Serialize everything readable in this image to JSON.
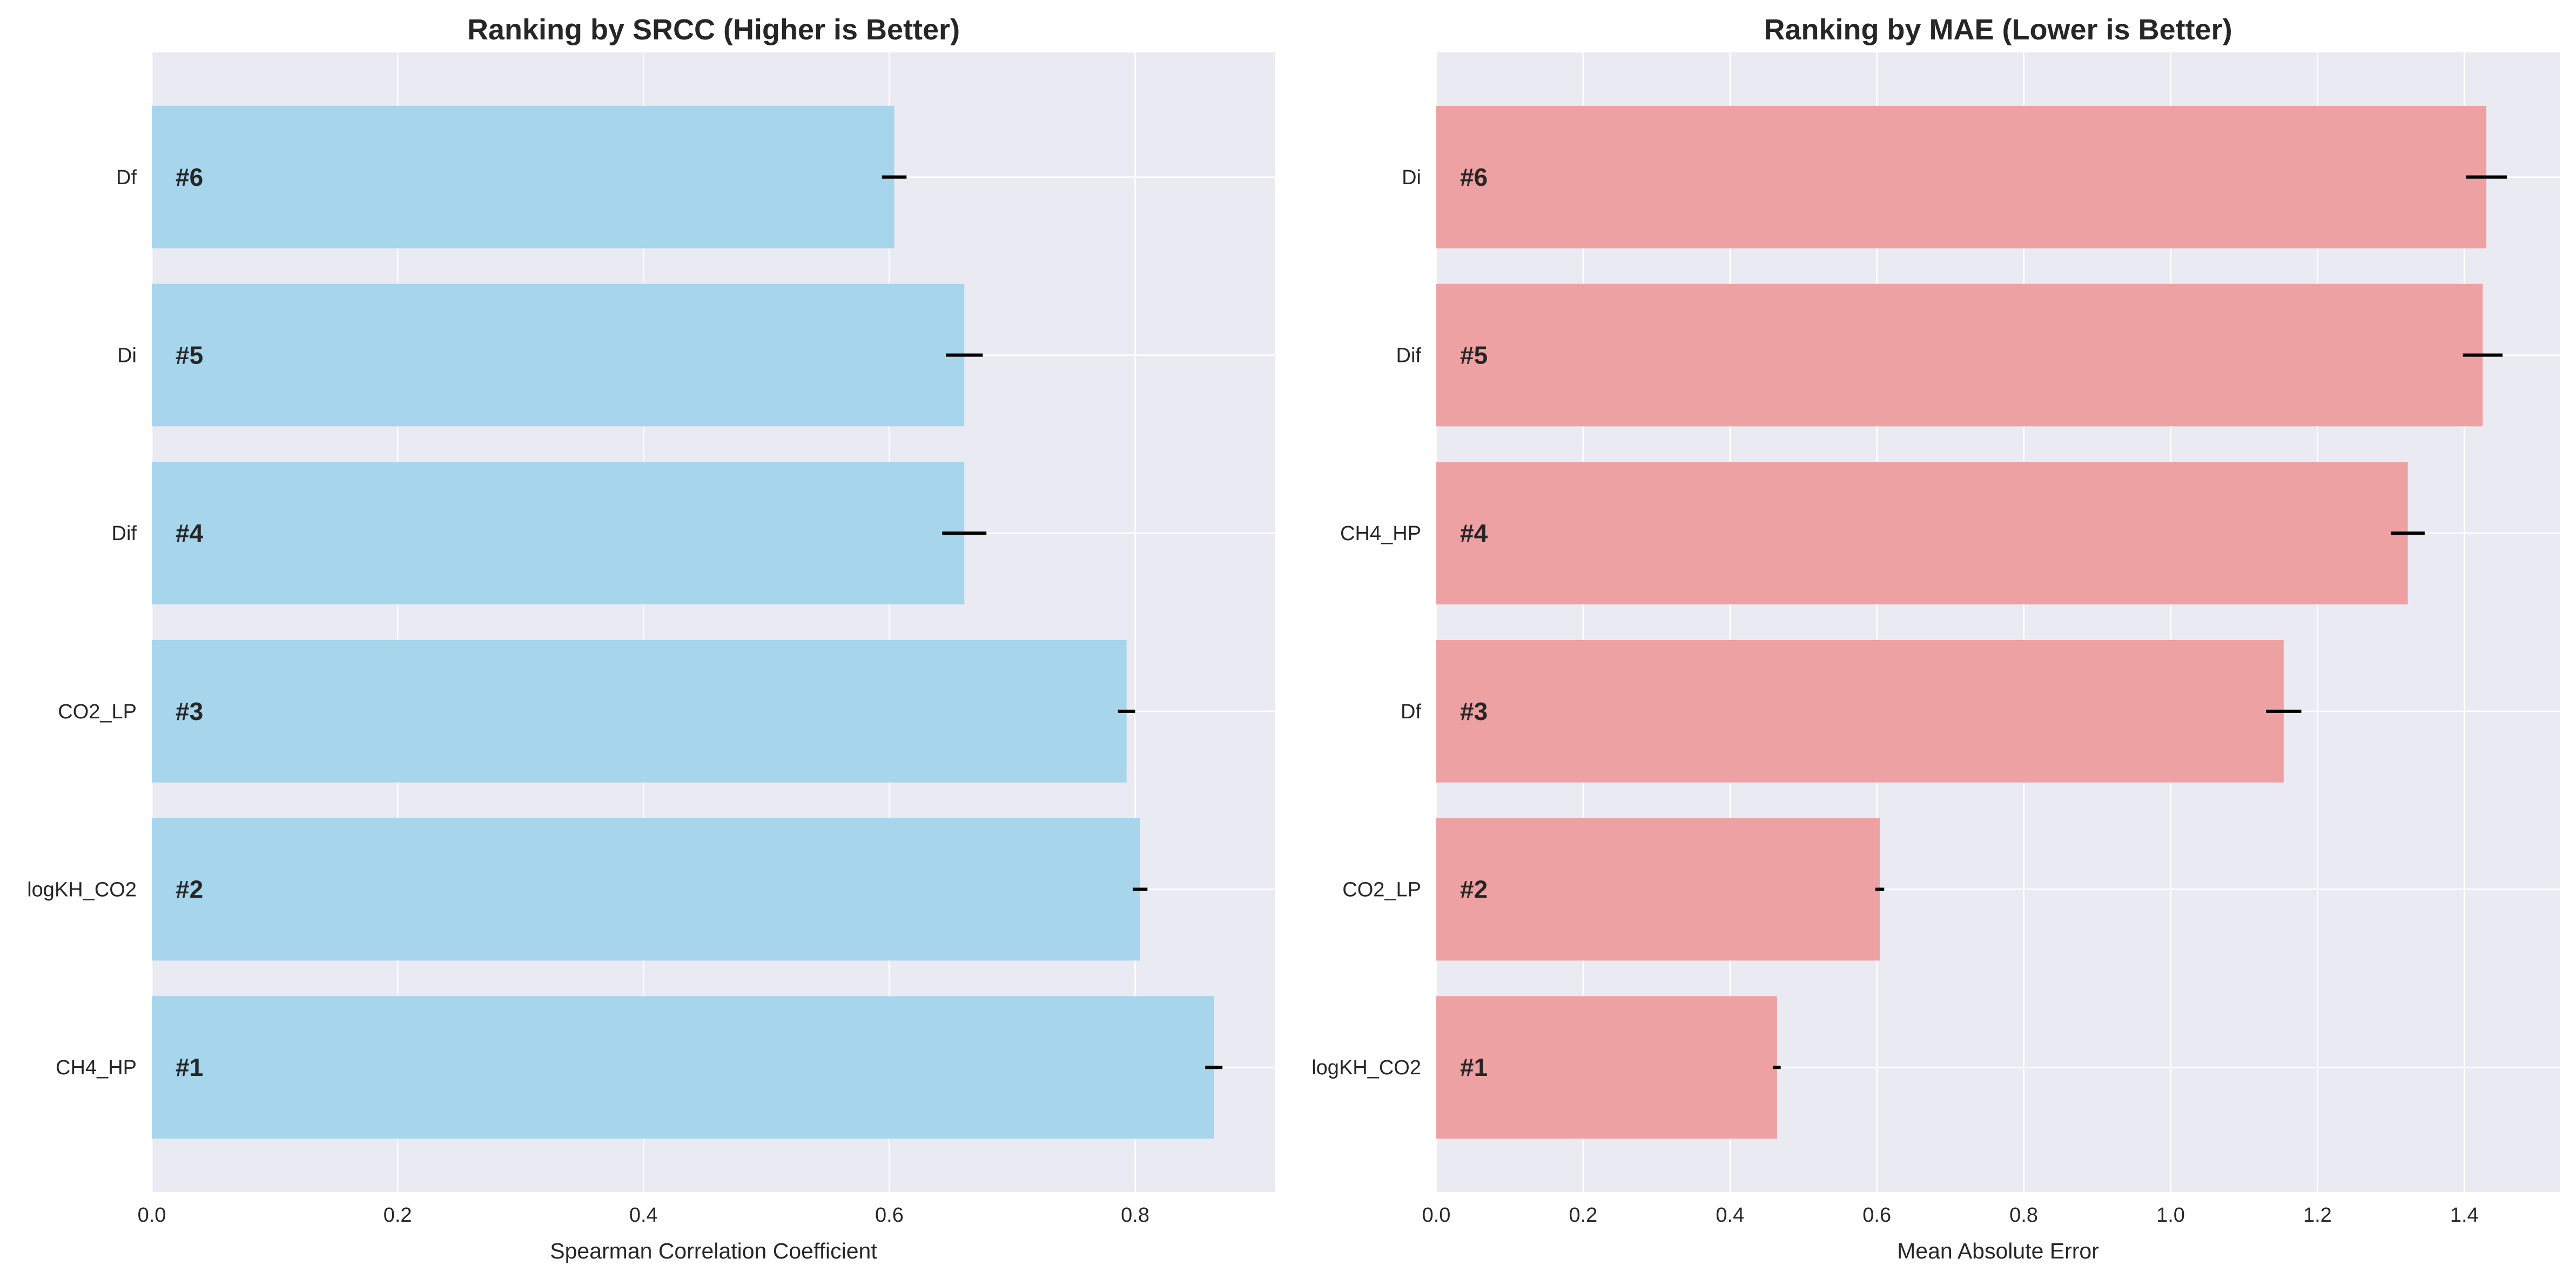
{
  "chart_data": [
    {
      "type": "bar",
      "orientation": "horizontal",
      "title": "Ranking by SRCC (Higher is Better)",
      "xlabel": "Spearman Correlation Coefficient",
      "ylabel": "",
      "xlim": [
        0,
        0.914
      ],
      "xticks": [
        "0.0",
        "0.2",
        "0.4",
        "0.6",
        "0.8"
      ],
      "categories": [
        "CH4_HP",
        "logKH_CO2",
        "CO2_LP",
        "Dif",
        "Di",
        "Df"
      ],
      "values": [
        0.864,
        0.804,
        0.793,
        0.661,
        0.661,
        0.604
      ],
      "errors": [
        0.007,
        0.006,
        0.007,
        0.018,
        0.015,
        0.01
      ],
      "ranks": [
        "#1",
        "#2",
        "#3",
        "#4",
        "#5",
        "#6"
      ],
      "bar_color": "#a6d5ec",
      "grid": true
    },
    {
      "type": "bar",
      "orientation": "horizontal",
      "title": "Ranking by MAE (Lower is Better)",
      "xlabel": "Mean Absolute Error",
      "ylabel": "",
      "xlim": [
        0,
        1.53
      ],
      "xticks": [
        "0.0",
        "0.2",
        "0.4",
        "0.6",
        "0.8",
        "1.0",
        "1.2",
        "1.4"
      ],
      "categories": [
        "logKH_CO2",
        "CO2_LP",
        "Df",
        "CH4_HP",
        "Dif",
        "Di"
      ],
      "values": [
        0.464,
        0.604,
        1.154,
        1.323,
        1.425,
        1.43
      ],
      "errors": [
        0.005,
        0.006,
        0.024,
        0.023,
        0.027,
        0.028
      ],
      "ranks": [
        "#1",
        "#2",
        "#3",
        "#4",
        "#5",
        "#6"
      ],
      "bar_color": "#eea1a3",
      "grid": true
    }
  ],
  "colors": {
    "plot_background": "#eaeaf2",
    "grid": "#ffffff",
    "text": "#262626",
    "error_bar": "#000000"
  }
}
